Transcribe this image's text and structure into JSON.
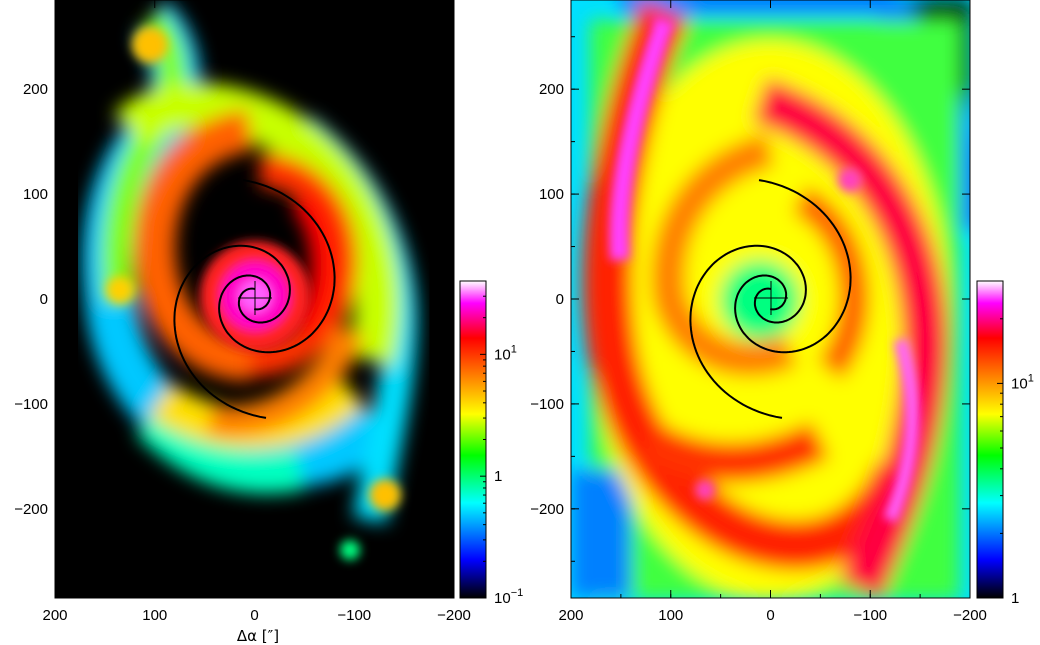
{
  "figure": {
    "panels": [
      {
        "name": "left",
        "type": "heatmap",
        "xlabel": "Δα  [″]",
        "x_ticks": [
          "200",
          "100",
          "0",
          "−100",
          "−200"
        ],
        "y_ticks": [
          "200",
          "100",
          "0",
          "−100",
          "−200"
        ],
        "x_range": [
          200,
          -200
        ],
        "y_range": [
          -285,
          285
        ],
        "colorbar": {
          "scale": "log",
          "labels": [
            {
              "text": "10",
              "sup": "1",
              "value": 10
            },
            {
              "text": "1",
              "sup": "",
              "value": 1
            },
            {
              "text": "10",
              "sup": "−1",
              "value": 0.1
            }
          ],
          "range": [
            0.1,
            40
          ]
        },
        "center_marker": "cross",
        "overlay": "logarithmic spiral arms"
      },
      {
        "name": "right",
        "type": "heatmap",
        "xlabel": "",
        "x_ticks": [
          "200",
          "100",
          "0",
          "−100",
          "−200"
        ],
        "y_ticks": [
          "200",
          "100",
          "0",
          "−100",
          "−200"
        ],
        "x_range": [
          200,
          -200
        ],
        "y_range": [
          -285,
          285
        ],
        "colorbar": {
          "scale": "log",
          "labels": [
            {
              "text": "10",
              "sup": "1",
              "value": 10
            },
            {
              "text": "1",
              "sup": "",
              "value": 1
            }
          ],
          "range": [
            1,
            30
          ]
        },
        "center_marker": "cross",
        "overlay": "logarithmic spiral arms"
      }
    ],
    "colormap": [
      "#000000",
      "#0000ff",
      "#00ffff",
      "#00ff00",
      "#ffff00",
      "#ff8000",
      "#ff0000",
      "#ff00ff",
      "#ffffff"
    ]
  }
}
